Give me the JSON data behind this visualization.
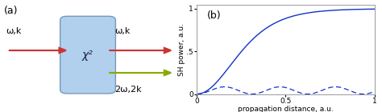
{
  "fig_width": 4.74,
  "fig_height": 1.4,
  "dpi": 100,
  "panel_a_label": "(a)",
  "panel_b_label": "(b)",
  "box_color": "#b0d0ee",
  "box_edge_color": "#7799bb",
  "chi2_label": "χ²",
  "input_label": "ω,k",
  "output_top_label": "ω,k",
  "output_bottom_label": "2ω,2k",
  "arrow_in_color": "#cc3333",
  "arrow_out_top_color": "#cc3333",
  "arrow_out_bottom_color": "#88aa00",
  "ylabel": "SH power, a.u.",
  "xlabel": "propagation distance, a.u.",
  "xlim": [
    0,
    1
  ],
  "ylim": [
    0,
    1.05
  ],
  "ytick_vals": [
    0,
    0.5,
    1
  ],
  "ytick_labels": [
    "0",
    ".5",
    "1"
  ],
  "xtick_vals": [
    0,
    0.5,
    1
  ],
  "xtick_labels": [
    "0",
    "0.5",
    "1"
  ],
  "line_solid_color": "#1133cc",
  "line_dashed_color": "#1133cc",
  "background_color": "#ffffff",
  "solid_scale": 2.8,
  "dashed_amp": 0.085,
  "dashed_freq": 3.2
}
